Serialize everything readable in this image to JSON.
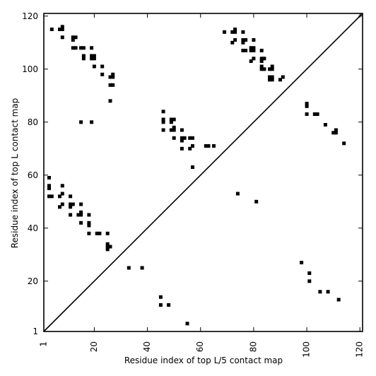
{
  "chart_data": {
    "type": "scatter",
    "xlabel": "Residue index of top L/5 contact map",
    "ylabel": "Residue index of top L contact map",
    "xlim": [
      1,
      121
    ],
    "ylim": [
      1,
      121
    ],
    "x_ticks": [
      1,
      20,
      40,
      60,
      80,
      100,
      120
    ],
    "y_ticks": [
      1,
      20,
      40,
      60,
      80,
      100,
      120
    ],
    "diagonal": true,
    "grid": false,
    "marker": "filled-square",
    "color": "#000000",
    "series": [
      {
        "values": [
          [
            4,
            115
          ],
          [
            8,
            116
          ],
          [
            8,
            115
          ],
          [
            7,
            115
          ],
          [
            8,
            112
          ],
          [
            12,
            112
          ],
          [
            13,
            112
          ],
          [
            12,
            111
          ],
          [
            12,
            108
          ],
          [
            13,
            108
          ],
          [
            15,
            108
          ],
          [
            16,
            108
          ],
          [
            16,
            105
          ],
          [
            16,
            104
          ],
          [
            19,
            108
          ],
          [
            19,
            105
          ],
          [
            20,
            105
          ],
          [
            19,
            104
          ],
          [
            20,
            104
          ],
          [
            20,
            101
          ],
          [
            23,
            101
          ],
          [
            23,
            98
          ],
          [
            26,
            97
          ],
          [
            27,
            98
          ],
          [
            27,
            97
          ],
          [
            26,
            94
          ],
          [
            27,
            94
          ],
          [
            26,
            88
          ],
          [
            15,
            80
          ],
          [
            19,
            80
          ],
          [
            46,
            84
          ],
          [
            46,
            81
          ],
          [
            46,
            80
          ],
          [
            49,
            81
          ],
          [
            50,
            81
          ],
          [
            49,
            80
          ],
          [
            46,
            77
          ],
          [
            49,
            77
          ],
          [
            50,
            78
          ],
          [
            50,
            77
          ],
          [
            53,
            77
          ],
          [
            50,
            74
          ],
          [
            53,
            74
          ],
          [
            54,
            74
          ],
          [
            53,
            73
          ],
          [
            56,
            74
          ],
          [
            57,
            74
          ],
          [
            53,
            70
          ],
          [
            56,
            70
          ],
          [
            57,
            71
          ],
          [
            62,
            71
          ],
          [
            63,
            71
          ],
          [
            65,
            71
          ],
          [
            57,
            63
          ],
          [
            69,
            114
          ],
          [
            72,
            114
          ],
          [
            73,
            115
          ],
          [
            73,
            114
          ],
          [
            72,
            110
          ],
          [
            73,
            111
          ],
          [
            76,
            114
          ],
          [
            76,
            111
          ],
          [
            77,
            111
          ],
          [
            76,
            110
          ],
          [
            76,
            107
          ],
          [
            77,
            107
          ],
          [
            79,
            108
          ],
          [
            80,
            108
          ],
          [
            80,
            107
          ],
          [
            79,
            107
          ],
          [
            80,
            111
          ],
          [
            79,
            103
          ],
          [
            80,
            104
          ],
          [
            83,
            107
          ],
          [
            83,
            104
          ],
          [
            84,
            104
          ],
          [
            83,
            103
          ],
          [
            83,
            101
          ],
          [
            83,
            100
          ],
          [
            84,
            100
          ],
          [
            86,
            100
          ],
          [
            87,
            101
          ],
          [
            87,
            100
          ],
          [
            86,
            97
          ],
          [
            87,
            97
          ],
          [
            86,
            96
          ],
          [
            87,
            96
          ],
          [
            90,
            96
          ],
          [
            91,
            97
          ],
          [
            100,
            87
          ],
          [
            100,
            86
          ],
          [
            100,
            83
          ],
          [
            103,
            83
          ],
          [
            104,
            83
          ],
          [
            107,
            79
          ],
          [
            110,
            76
          ],
          [
            111,
            77
          ],
          [
            111,
            76
          ],
          [
            114,
            72
          ],
          [
            3,
            59
          ],
          [
            3,
            56
          ],
          [
            3,
            55
          ],
          [
            3,
            52
          ],
          [
            4,
            52
          ],
          [
            7,
            52
          ],
          [
            8,
            53
          ],
          [
            8,
            56
          ],
          [
            11,
            52
          ],
          [
            7,
            48
          ],
          [
            8,
            49
          ],
          [
            11,
            49
          ],
          [
            12,
            49
          ],
          [
            11,
            48
          ],
          [
            11,
            45
          ],
          [
            14,
            45
          ],
          [
            15,
            46
          ],
          [
            15,
            45
          ],
          [
            15,
            49
          ],
          [
            15,
            42
          ],
          [
            18,
            45
          ],
          [
            18,
            42
          ],
          [
            18,
            41
          ],
          [
            18,
            38
          ],
          [
            21,
            38
          ],
          [
            22,
            38
          ],
          [
            25,
            38
          ],
          [
            25,
            34
          ],
          [
            25,
            33
          ],
          [
            26,
            33
          ],
          [
            25,
            32
          ],
          [
            74,
            53
          ],
          [
            81,
            50
          ],
          [
            33,
            25
          ],
          [
            38,
            25
          ],
          [
            45,
            14
          ],
          [
            45,
            11
          ],
          [
            48,
            11
          ],
          [
            55,
            4
          ],
          [
            98,
            27
          ],
          [
            101,
            23
          ],
          [
            101,
            20
          ],
          [
            105,
            16
          ],
          [
            108,
            16
          ],
          [
            112,
            13
          ]
        ]
      }
    ]
  }
}
